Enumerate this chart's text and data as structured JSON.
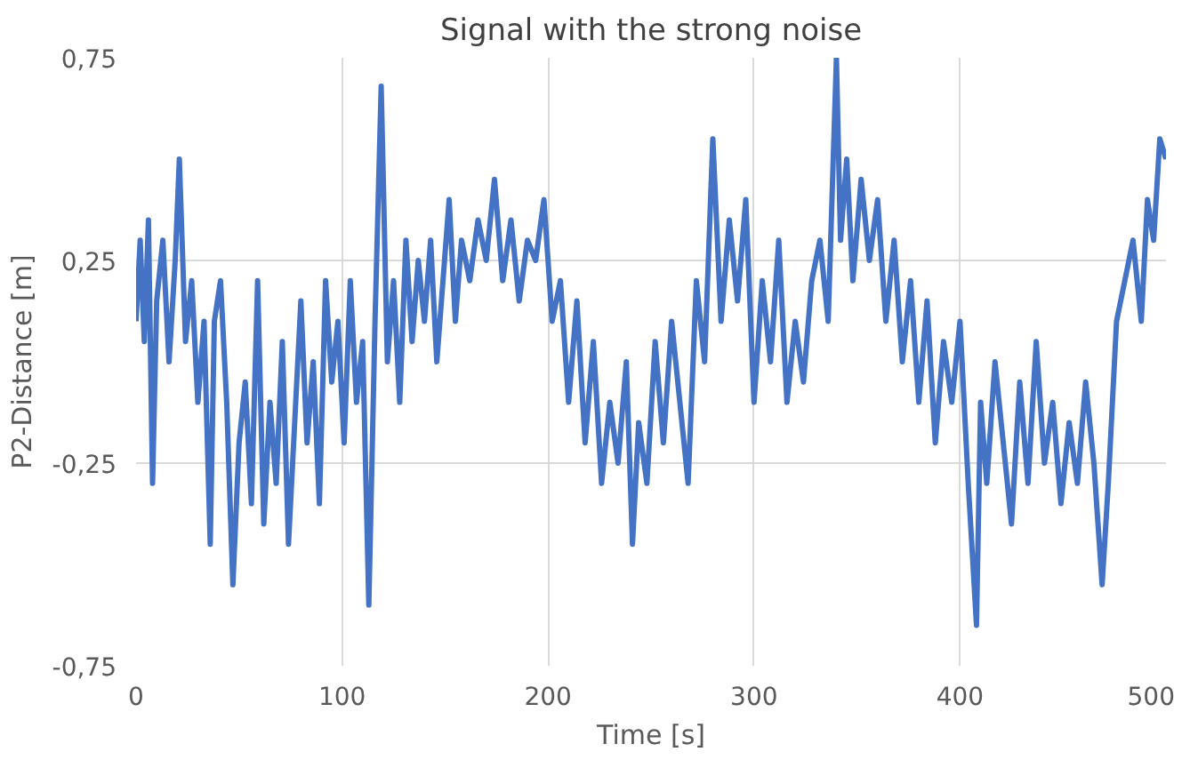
{
  "chart_data": {
    "type": "line",
    "title": "Signal with the strong noise",
    "xlabel": "Time [s]",
    "ylabel": "P2-Distance [m]",
    "x": [
      0,
      2,
      4,
      6,
      8,
      10,
      13,
      16,
      19,
      21,
      24,
      27,
      30,
      33,
      36,
      38,
      41,
      44,
      47,
      50,
      53,
      56,
      59,
      62,
      65,
      68,
      71,
      74,
      77,
      80,
      83,
      86,
      89,
      92,
      95,
      98,
      101,
      104,
      107,
      110,
      113,
      116,
      119,
      122,
      125,
      128,
      131,
      134,
      137,
      140,
      143,
      146,
      149,
      152,
      155,
      158,
      162,
      166,
      170,
      174,
      178,
      182,
      186,
      190,
      194,
      198,
      202,
      206,
      210,
      214,
      218,
      222,
      226,
      230,
      234,
      238,
      241,
      244,
      248,
      252,
      256,
      260,
      264,
      268,
      272,
      276,
      280,
      284,
      288,
      292,
      296,
      300,
      304,
      308,
      312,
      316,
      320,
      324,
      328,
      332,
      336,
      340,
      342,
      345,
      348,
      352,
      356,
      360,
      364,
      368,
      372,
      376,
      380,
      384,
      388,
      392,
      396,
      400,
      404,
      408,
      410,
      413,
      417,
      421,
      425,
      429,
      433,
      437,
      441,
      445,
      449,
      453,
      457,
      461,
      465,
      469,
      472,
      476,
      480,
      484,
      488,
      491,
      494,
      497,
      500
    ],
    "series": [
      {
        "color": "#4472c4",
        "values": [
          0.1,
          0.3,
          0.05,
          0.35,
          -0.3,
          0.15,
          0.3,
          0.0,
          0.25,
          0.5,
          0.05,
          0.2,
          -0.1,
          0.1,
          -0.45,
          0.1,
          0.2,
          -0.1,
          -0.55,
          -0.2,
          -0.05,
          -0.35,
          0.2,
          -0.4,
          -0.1,
          -0.3,
          0.05,
          -0.45,
          -0.15,
          0.15,
          -0.2,
          0.0,
          -0.35,
          0.2,
          -0.05,
          0.1,
          -0.2,
          0.2,
          -0.1,
          0.05,
          -0.6,
          0.1,
          0.68,
          0.0,
          0.2,
          -0.1,
          0.3,
          0.05,
          0.25,
          0.1,
          0.3,
          0.0,
          0.2,
          0.4,
          0.1,
          0.3,
          0.2,
          0.35,
          0.25,
          0.45,
          0.2,
          0.35,
          0.15,
          0.3,
          0.25,
          0.4,
          0.1,
          0.2,
          -0.1,
          0.15,
          -0.2,
          0.05,
          -0.3,
          -0.1,
          -0.25,
          0.0,
          -0.45,
          -0.15,
          -0.3,
          0.05,
          -0.2,
          0.1,
          -0.1,
          -0.3,
          0.2,
          0.0,
          0.55,
          0.1,
          0.35,
          0.15,
          0.4,
          -0.1,
          0.2,
          0.0,
          0.3,
          -0.1,
          0.1,
          -0.05,
          0.2,
          0.3,
          0.1,
          0.75,
          0.3,
          0.5,
          0.2,
          0.45,
          0.25,
          0.4,
          0.1,
          0.3,
          0.0,
          0.2,
          -0.1,
          0.15,
          -0.2,
          0.05,
          -0.1,
          0.1,
          -0.3,
          -0.65,
          -0.1,
          -0.3,
          0.0,
          -0.2,
          -0.4,
          -0.05,
          -0.3,
          0.05,
          -0.25,
          -0.1,
          -0.35,
          -0.15,
          -0.3,
          -0.05,
          -0.25,
          -0.55,
          -0.3,
          0.1,
          0.2,
          0.3,
          0.1,
          0.4,
          0.3,
          0.55,
          0.5
        ]
      }
    ],
    "xlim": [
      0,
      500
    ],
    "ylim": [
      -0.75,
      0.75
    ],
    "xticks": [
      0,
      100,
      200,
      300,
      400,
      500
    ],
    "yticks": [
      {
        "value": -0.75,
        "label": "-0,75"
      },
      {
        "value": -0.25,
        "label": "-0,25"
      },
      {
        "value": 0.25,
        "label": "0,25"
      },
      {
        "value": 0.75,
        "label": "0,75"
      }
    ],
    "grid": true
  }
}
